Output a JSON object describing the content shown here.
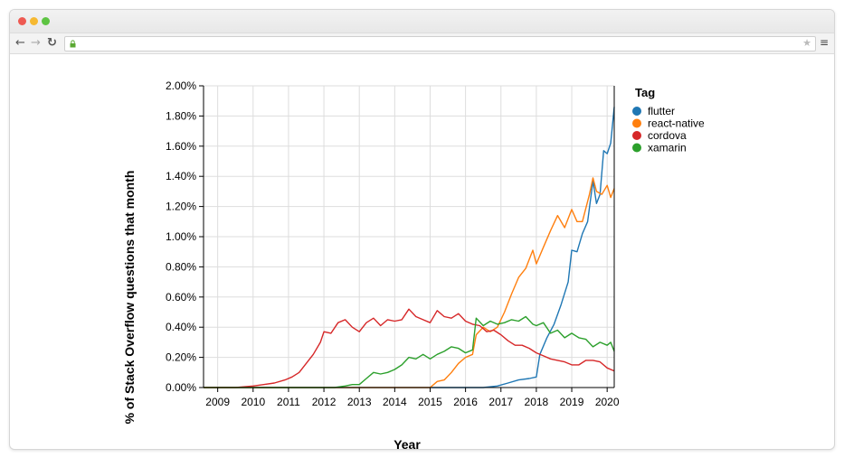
{
  "browser": {
    "url": "",
    "back_icon": "arrow-left-icon",
    "forward_icon": "arrow-right-icon",
    "reload_icon": "reload-icon",
    "lock_icon": "lock-icon",
    "star_icon": "star-icon",
    "menu_icon": "hamburger-menu-icon"
  },
  "chart_data": {
    "type": "line",
    "title": "",
    "xlabel": "Year",
    "ylabel": "% of Stack Overflow questions that month",
    "xlim": [
      2008.6,
      2020.2
    ],
    "ylim": [
      0,
      2.0
    ],
    "y_ticks": [
      "0.00%",
      "0.20%",
      "0.40%",
      "0.60%",
      "0.80%",
      "1.00%",
      "1.20%",
      "1.40%",
      "1.60%",
      "1.80%",
      "2.00%"
    ],
    "x_ticks": [
      "2009",
      "2010",
      "2011",
      "2012",
      "2013",
      "2014",
      "2015",
      "2016",
      "2017",
      "2018",
      "2019",
      "2020"
    ],
    "grid": true,
    "legend": {
      "title": "Tag",
      "position": "right"
    },
    "series": [
      {
        "name": "flutter",
        "color": "#1f77b4",
        "points": [
          [
            2008.6,
            0
          ],
          [
            2016.5,
            0
          ],
          [
            2016.9,
            0.01
          ],
          [
            2017.2,
            0.03
          ],
          [
            2017.5,
            0.05
          ],
          [
            2017.8,
            0.06
          ],
          [
            2018.0,
            0.07
          ],
          [
            2018.1,
            0.22
          ],
          [
            2018.3,
            0.33
          ],
          [
            2018.5,
            0.42
          ],
          [
            2018.7,
            0.55
          ],
          [
            2018.9,
            0.7
          ],
          [
            2019.0,
            0.91
          ],
          [
            2019.15,
            0.9
          ],
          [
            2019.3,
            1.02
          ],
          [
            2019.45,
            1.1
          ],
          [
            2019.6,
            1.37
          ],
          [
            2019.7,
            1.22
          ],
          [
            2019.8,
            1.28
          ],
          [
            2019.9,
            1.57
          ],
          [
            2020.0,
            1.55
          ],
          [
            2020.1,
            1.62
          ],
          [
            2020.2,
            1.86
          ]
        ]
      },
      {
        "name": "react-native",
        "color": "#ff7f0e",
        "points": [
          [
            2008.6,
            0
          ],
          [
            2015.0,
            0
          ],
          [
            2015.2,
            0.04
          ],
          [
            2015.4,
            0.05
          ],
          [
            2015.6,
            0.1
          ],
          [
            2015.8,
            0.16
          ],
          [
            2016.0,
            0.2
          ],
          [
            2016.2,
            0.22
          ],
          [
            2016.3,
            0.35
          ],
          [
            2016.5,
            0.4
          ],
          [
            2016.7,
            0.37
          ],
          [
            2016.9,
            0.4
          ],
          [
            2017.1,
            0.5
          ],
          [
            2017.3,
            0.62
          ],
          [
            2017.5,
            0.73
          ],
          [
            2017.7,
            0.79
          ],
          [
            2017.9,
            0.91
          ],
          [
            2018.0,
            0.82
          ],
          [
            2018.2,
            0.93
          ],
          [
            2018.4,
            1.04
          ],
          [
            2018.6,
            1.14
          ],
          [
            2018.8,
            1.06
          ],
          [
            2019.0,
            1.18
          ],
          [
            2019.15,
            1.1
          ],
          [
            2019.3,
            1.1
          ],
          [
            2019.5,
            1.28
          ],
          [
            2019.6,
            1.39
          ],
          [
            2019.7,
            1.3
          ],
          [
            2019.85,
            1.28
          ],
          [
            2020.0,
            1.34
          ],
          [
            2020.1,
            1.26
          ],
          [
            2020.2,
            1.32
          ]
        ]
      },
      {
        "name": "cordova",
        "color": "#d62728",
        "points": [
          [
            2008.6,
            0
          ],
          [
            2009.5,
            0.0
          ],
          [
            2010.0,
            0.01
          ],
          [
            2010.3,
            0.02
          ],
          [
            2010.6,
            0.03
          ],
          [
            2010.9,
            0.05
          ],
          [
            2011.1,
            0.07
          ],
          [
            2011.3,
            0.1
          ],
          [
            2011.5,
            0.16
          ],
          [
            2011.7,
            0.22
          ],
          [
            2011.9,
            0.3
          ],
          [
            2012.0,
            0.37
          ],
          [
            2012.2,
            0.36
          ],
          [
            2012.4,
            0.43
          ],
          [
            2012.6,
            0.45
          ],
          [
            2012.8,
            0.4
          ],
          [
            2013.0,
            0.37
          ],
          [
            2013.2,
            0.43
          ],
          [
            2013.4,
            0.46
          ],
          [
            2013.6,
            0.41
          ],
          [
            2013.8,
            0.45
          ],
          [
            2014.0,
            0.44
          ],
          [
            2014.2,
            0.45
          ],
          [
            2014.4,
            0.52
          ],
          [
            2014.6,
            0.47
          ],
          [
            2014.8,
            0.45
          ],
          [
            2015.0,
            0.43
          ],
          [
            2015.2,
            0.51
          ],
          [
            2015.4,
            0.47
          ],
          [
            2015.6,
            0.46
          ],
          [
            2015.8,
            0.49
          ],
          [
            2016.0,
            0.44
          ],
          [
            2016.2,
            0.42
          ],
          [
            2016.4,
            0.41
          ],
          [
            2016.6,
            0.37
          ],
          [
            2016.8,
            0.38
          ],
          [
            2017.0,
            0.35
          ],
          [
            2017.2,
            0.31
          ],
          [
            2017.4,
            0.28
          ],
          [
            2017.6,
            0.28
          ],
          [
            2017.8,
            0.26
          ],
          [
            2018.0,
            0.23
          ],
          [
            2018.2,
            0.21
          ],
          [
            2018.4,
            0.19
          ],
          [
            2018.6,
            0.18
          ],
          [
            2018.8,
            0.17
          ],
          [
            2019.0,
            0.15
          ],
          [
            2019.2,
            0.15
          ],
          [
            2019.4,
            0.18
          ],
          [
            2019.6,
            0.18
          ],
          [
            2019.8,
            0.17
          ],
          [
            2020.0,
            0.13
          ],
          [
            2020.2,
            0.11
          ]
        ]
      },
      {
        "name": "xamarin",
        "color": "#2ca02c",
        "points": [
          [
            2008.6,
            0
          ],
          [
            2012.3,
            0
          ],
          [
            2012.6,
            0.01
          ],
          [
            2012.8,
            0.02
          ],
          [
            2013.0,
            0.02
          ],
          [
            2013.2,
            0.06
          ],
          [
            2013.4,
            0.1
          ],
          [
            2013.6,
            0.09
          ],
          [
            2013.8,
            0.1
          ],
          [
            2014.0,
            0.12
          ],
          [
            2014.2,
            0.15
          ],
          [
            2014.4,
            0.2
          ],
          [
            2014.6,
            0.19
          ],
          [
            2014.8,
            0.22
          ],
          [
            2015.0,
            0.19
          ],
          [
            2015.2,
            0.22
          ],
          [
            2015.4,
            0.24
          ],
          [
            2015.6,
            0.27
          ],
          [
            2015.8,
            0.26
          ],
          [
            2016.0,
            0.23
          ],
          [
            2016.2,
            0.25
          ],
          [
            2016.3,
            0.46
          ],
          [
            2016.5,
            0.41
          ],
          [
            2016.7,
            0.44
          ],
          [
            2016.9,
            0.42
          ],
          [
            2017.1,
            0.43
          ],
          [
            2017.3,
            0.45
          ],
          [
            2017.5,
            0.44
          ],
          [
            2017.7,
            0.47
          ],
          [
            2017.9,
            0.42
          ],
          [
            2018.0,
            0.41
          ],
          [
            2018.2,
            0.43
          ],
          [
            2018.4,
            0.36
          ],
          [
            2018.6,
            0.38
          ],
          [
            2018.8,
            0.33
          ],
          [
            2019.0,
            0.36
          ],
          [
            2019.2,
            0.33
          ],
          [
            2019.4,
            0.32
          ],
          [
            2019.6,
            0.27
          ],
          [
            2019.8,
            0.3
          ],
          [
            2020.0,
            0.28
          ],
          [
            2020.1,
            0.3
          ],
          [
            2020.2,
            0.24
          ]
        ]
      }
    ]
  }
}
